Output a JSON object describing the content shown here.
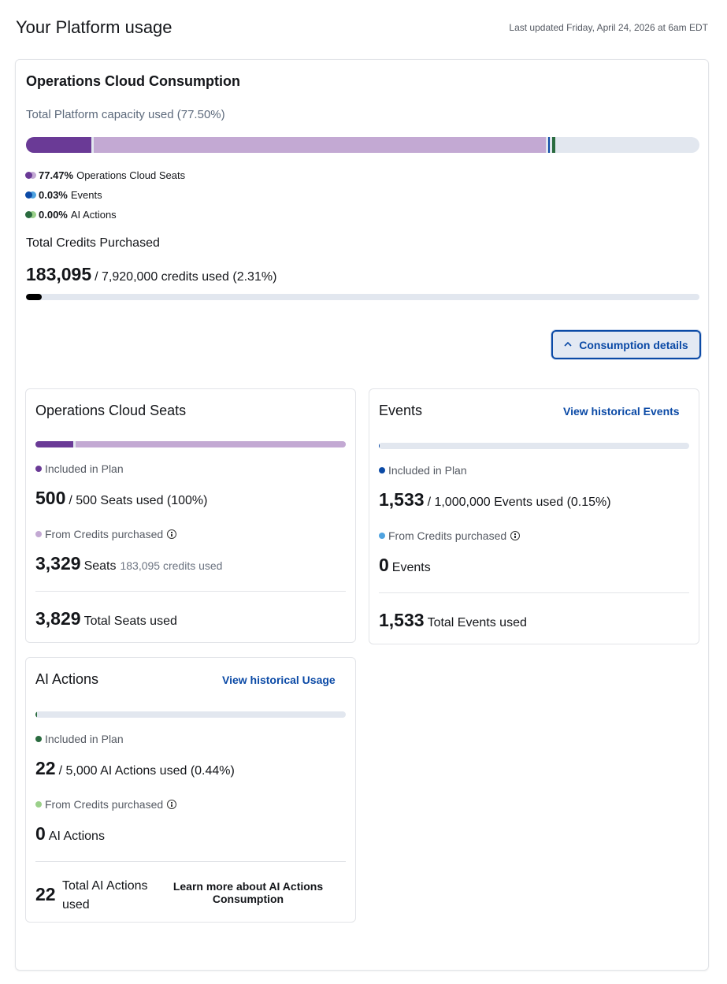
{
  "header": {
    "title": "Your Platform usage",
    "last_updated": "Last updated Friday, April 24, 2026 at 6am EDT"
  },
  "consumption": {
    "title": "Operations Cloud Consumption",
    "capacity_label": "Total Platform capacity used (77.50%)",
    "capacity_used_percent": 77.5,
    "legend": [
      {
        "pct": "77.47%",
        "label": "Operations Cloud Seats",
        "colors": [
          "#6a3a96",
          "#c3a9d3"
        ]
      },
      {
        "pct": "0.03%",
        "label": "Events",
        "colors": [
          "#0b4aa6",
          "#4fa3e0"
        ]
      },
      {
        "pct": "0.00%",
        "label": "AI Actions",
        "colors": [
          "#2a6b3f",
          "#9bd08a"
        ]
      }
    ],
    "credits_label": "Total Credits Purchased",
    "credits_used": "183,095",
    "credits_rest": "/ 7,920,000 credits used (2.31%)",
    "credits_used_percent": 2.31,
    "details_button": "Consumption details"
  },
  "seats": {
    "title": "Operations Cloud Seats",
    "included_label": "Included in Plan",
    "included_value": "500",
    "included_rest": "/ 500 Seats used (100%)",
    "credits_label": "From Credits purchased",
    "credits_value": "3,329",
    "credits_unit": "Seats",
    "credits_note": "183,095 credits used",
    "total_value": "3,829",
    "total_label": "Total Seats used"
  },
  "events": {
    "title": "Events",
    "link": "View historical Events",
    "included_label": "Included in Plan",
    "included_value": "1,533",
    "included_rest": "/ 1,000,000 Events used (0.15%)",
    "credits_label": "From Credits purchased",
    "credits_value": "0",
    "credits_unit": "Events",
    "total_value": "1,533",
    "total_label": "Total Events used"
  },
  "ai_actions": {
    "title": "AI Actions",
    "link": "View historical Usage",
    "included_label": "Included in Plan",
    "included_value": "22",
    "included_rest": "/ 5,000 AI Actions used (0.44%)",
    "credits_label": "From Credits purchased",
    "credits_value": "0",
    "credits_unit": "AI Actions",
    "total_value": "22",
    "total_label": "Total AI Actions used",
    "learn_more": "Learn more about AI Actions Consumption"
  },
  "colors": {
    "seats_dark": "#6a3a96",
    "seats_light": "#c3a9d3",
    "events_dark": "#0b4aa6",
    "events_light": "#4fa3e0",
    "ai_dark": "#2a6b3f",
    "ai_light": "#9bd08a",
    "track": "#e2e7ef",
    "link": "#0b4aa6"
  }
}
